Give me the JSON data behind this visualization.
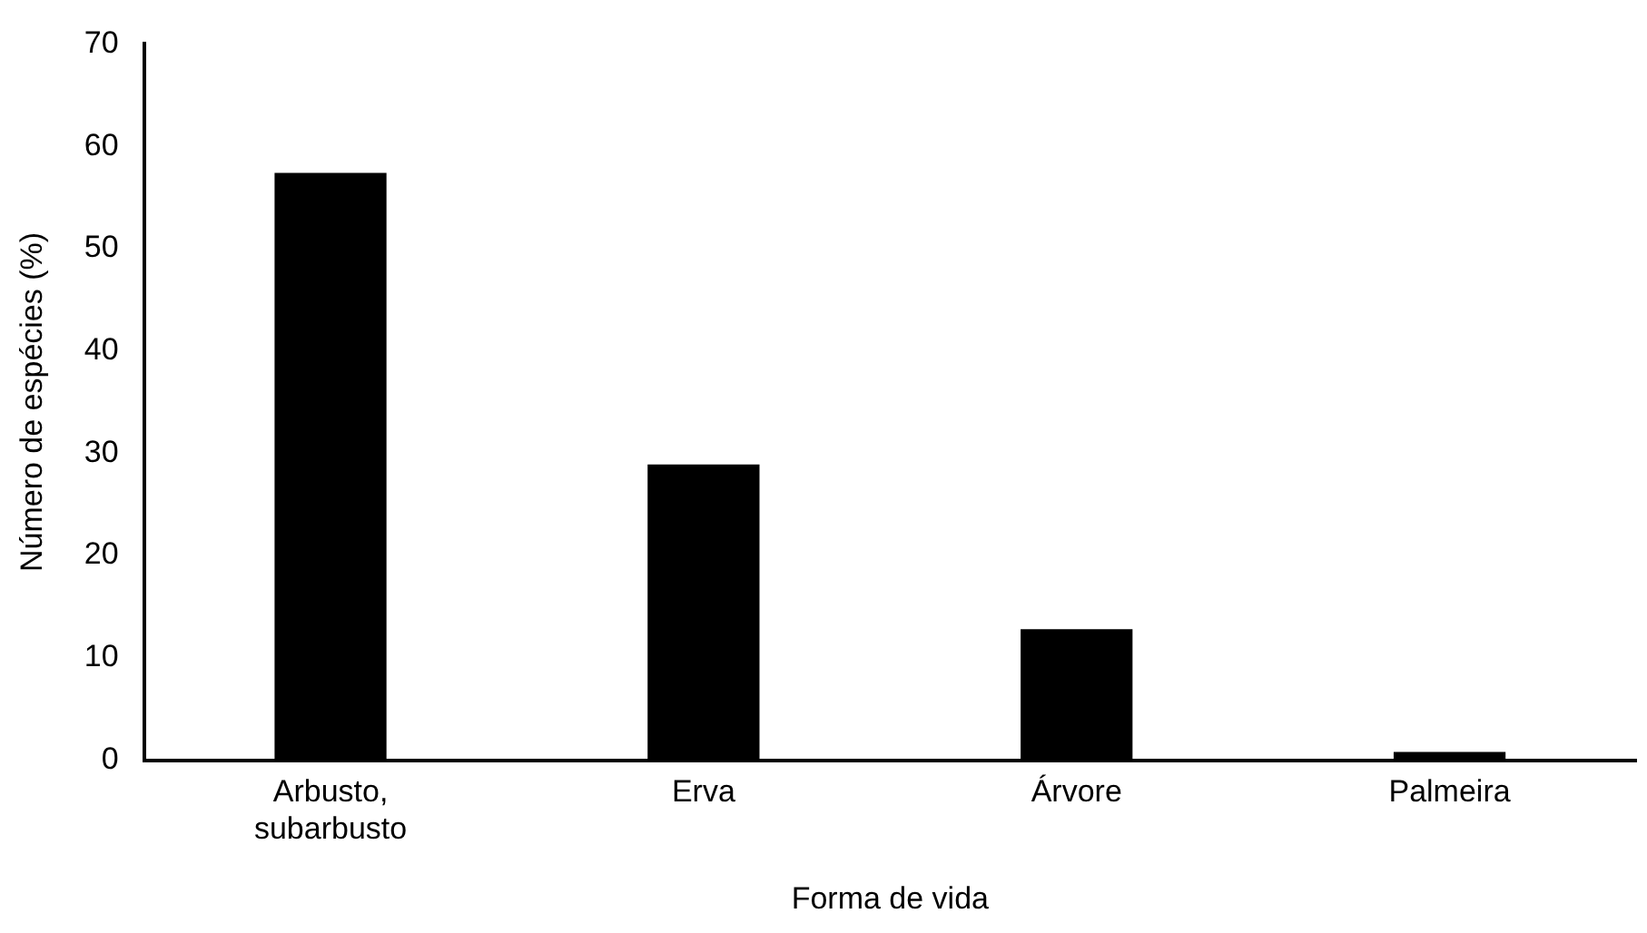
{
  "chart_data": {
    "type": "bar",
    "xlabel": "Forma de vida",
    "ylabel": "Número de espécies (%)",
    "categories": [
      "Arbusto, subarbusto",
      "Erva",
      "Árvore",
      "Palmeira"
    ],
    "values": [
      57.4,
      28.9,
      12.8,
      0.8
    ],
    "color": "#000000",
    "ylim": [
      0,
      70
    ],
    "yticks": [
      0,
      10,
      20,
      30,
      40,
      50,
      60,
      70
    ],
    "grid": false,
    "legend": false
  }
}
